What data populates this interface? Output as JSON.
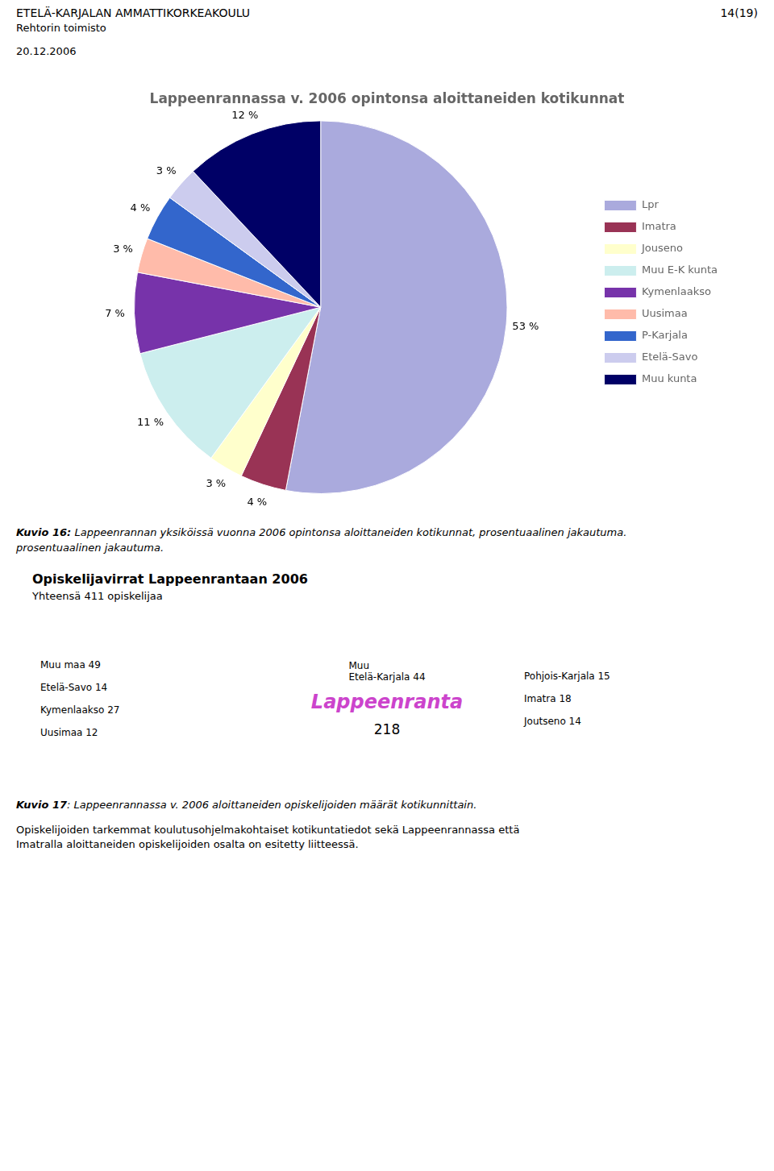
{
  "chart_data": {
    "type": "pie",
    "title": "Lappeenrannassa v. 2006 opintonsa aloittaneiden kotikunnat",
    "categories": [
      "Lpr",
      "Imatra",
      "Jouseno",
      "Muu E-K kunta",
      "Kymenlaakso",
      "Uusimaa",
      "P-Karjala",
      "Etelä-Savo",
      "Muu kunta"
    ],
    "values": [
      53,
      4,
      3,
      11,
      7,
      3,
      4,
      3,
      12
    ],
    "value_labels": [
      "53 %",
      "4 %",
      "3 %",
      "11 %",
      "7 %",
      "3 %",
      "4 %",
      "3 %",
      "12 %"
    ],
    "colors": [
      "#aaaadd",
      "#993355",
      "#ffffcc",
      "#cceeee",
      "#7733aa",
      "#ffbbaa",
      "#3366cc",
      "#ccccee",
      "#000066"
    ],
    "data_labels": true,
    "legend": "right",
    "annotations": [
      "ETELÄ-KARJALAN AMMATTIKORKEAKOULU",
      "14(19)",
      "Rehtorin toimisto",
      "20.12.2006",
      "Kuvio 16:",
      " Lappeenrannan yksiköissä vuonna 2006 opintonsa aloittaneiden kotikunnat, prosentuaalinen jakautuma.",
      "prosentuaalinen jakautuma.",
      "Opiskelijavirrat Lappeenrantaan 2006",
      "Yhteensä 411 opiskelijaa",
      "Lappeenranta",
      "218",
      "Muu maa 49",
      "Etelä-Savo 14",
      "Kymenlaakso 27",
      "Uusimaa 12",
      "Muu",
      "Etelä-Karjala 44",
      "Pohjois-Karjala 15",
      "Imatra 18",
      "Joutseno 14",
      "Kuvio 17",
      ": Lappeenrannassa v. 2006 aloittaneiden opiskelijoiden määrät kotikunnittain.",
      "Opiskelijoiden tarkemmat koulutusohjelmakohtaiset kotikuntatiedot sekä Lappeenrannassa että",
      "Imatralla aloittaneiden opiskelijoiden osalta on esitetty liitteessä."
    ]
  }
}
